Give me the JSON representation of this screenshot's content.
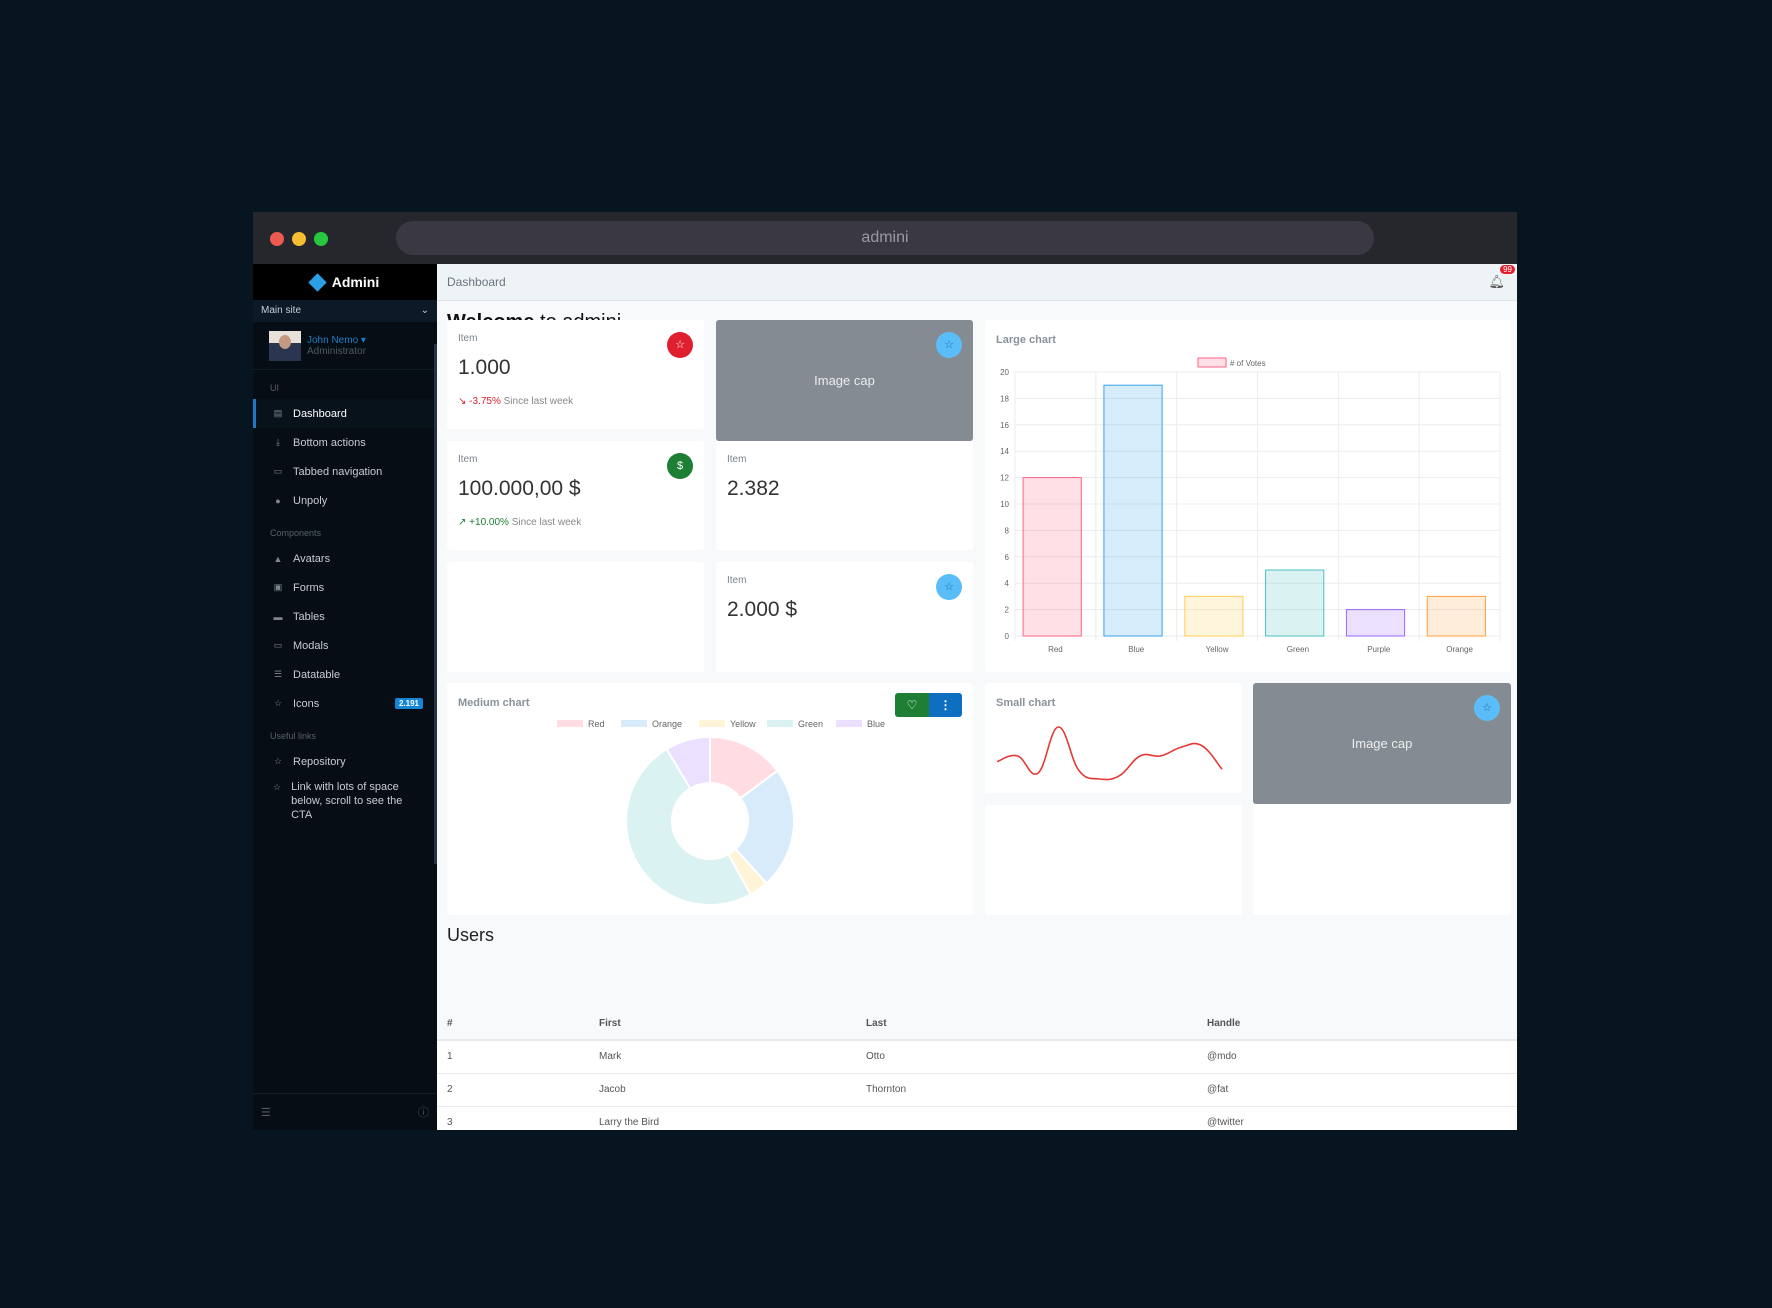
{
  "window": {
    "title": "admini",
    "traffic_colors": [
      "#ee5a52",
      "#f5bd2f",
      "#27c840"
    ]
  },
  "sidebar": {
    "brand": "Admini",
    "site_select": "Main site",
    "user": {
      "name": "John Nemo",
      "role": "Administrator"
    },
    "sections": [
      {
        "label": "UI",
        "items": [
          {
            "label": "Dashboard",
            "icon": "dashboard-icon",
            "active": true
          },
          {
            "label": "Bottom actions",
            "icon": "download-icon"
          },
          {
            "label": "Tabbed navigation",
            "icon": "window-icon"
          },
          {
            "label": "Unpoly",
            "icon": "gear-icon"
          }
        ]
      },
      {
        "label": "Components",
        "items": [
          {
            "label": "Avatars",
            "icon": "user-icon"
          },
          {
            "label": "Forms",
            "icon": "form-icon"
          },
          {
            "label": "Tables",
            "icon": "table-icon"
          },
          {
            "label": "Modals",
            "icon": "modal-icon"
          },
          {
            "label": "Datatable",
            "icon": "datatable-icon"
          },
          {
            "label": "Icons",
            "icon": "star-icon",
            "badge": "2.191"
          }
        ]
      },
      {
        "label": "Useful links",
        "items": [
          {
            "label": "Repository",
            "icon": "star-icon"
          },
          {
            "label": "Link with lots of space below, scroll to see the CTA",
            "icon": "star-icon"
          }
        ]
      }
    ]
  },
  "header": {
    "breadcrumb": "Dashboard",
    "notifications": "99"
  },
  "welcome": {
    "bold": "Welcome",
    "rest": " to admini"
  },
  "cards": {
    "c1": {
      "title": "Item",
      "value": "1.000",
      "delta": "-3.75%",
      "since": "Since last week",
      "color": "#e0202e"
    },
    "c2": {
      "title": "Item",
      "value": "100.000,00 $",
      "delta": "+10.00%",
      "since": "Since last week",
      "color": "#1e7e34"
    },
    "c3": {
      "title": "Item",
      "value": "2.382"
    },
    "c4": {
      "title": "Item",
      "value": "2.000 $"
    },
    "image_cap": "Image cap"
  },
  "large_chart": {
    "title": "Large chart"
  },
  "medium_chart": {
    "title": "Medium chart"
  },
  "small_chart": {
    "title": "Small chart"
  },
  "chart_data": [
    {
      "type": "bar",
      "categories": [
        "Red",
        "Blue",
        "Yellow",
        "Green",
        "Purple",
        "Orange"
      ],
      "series": [
        {
          "name": "# of Votes",
          "values": [
            12,
            19,
            3,
            5,
            2,
            3
          ]
        }
      ],
      "ylim": [
        0,
        20
      ],
      "yticks": [
        0,
        2,
        4,
        6,
        8,
        10,
        12,
        14,
        16,
        18,
        20
      ],
      "grid": true,
      "legend": "top",
      "colors": [
        "#ff6384",
        "#36a2eb",
        "#ffce56",
        "#4bc0c0",
        "#9966ff",
        "#ff9f40"
      ]
    },
    {
      "type": "pie",
      "labels": [
        "Red",
        "Orange",
        "Yellow",
        "Green",
        "Blue"
      ],
      "values": [
        12,
        19,
        3,
        40,
        7
      ],
      "legend": "top",
      "colors": [
        "#ffdde3",
        "#d7ebfa",
        "#fff4d7",
        "#dbf2f2",
        "#ebe0ff"
      ]
    },
    {
      "type": "line",
      "values": [
        6,
        7,
        4,
        12,
        4.5,
        3,
        3.6,
        7,
        7,
        8.5,
        8.8,
        4.7
      ],
      "color": "#e53935",
      "legend": "none",
      "grid": false
    }
  ],
  "users": {
    "title": "Users",
    "columns": [
      "#",
      "First",
      "Last",
      "Handle"
    ],
    "rows": [
      [
        "1",
        "Mark",
        "Otto",
        "@mdo"
      ],
      [
        "2",
        "Jacob",
        "Thornton",
        "@fat"
      ],
      [
        "3",
        "Larry the Bird",
        "",
        "@twitter"
      ]
    ]
  }
}
